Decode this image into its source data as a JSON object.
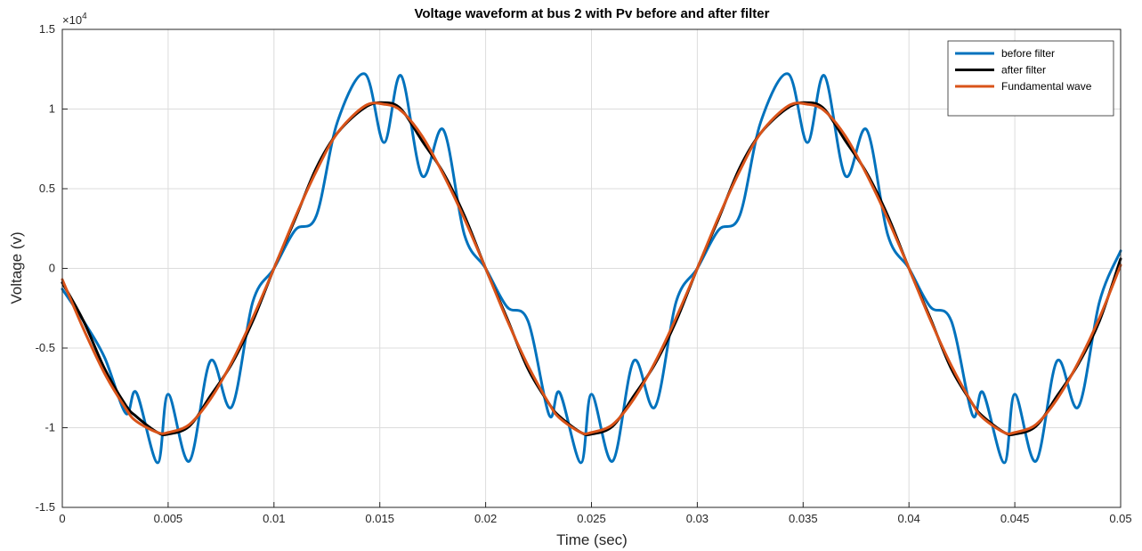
{
  "chart_data": {
    "type": "line",
    "title": "Voltage waveform at bus 2 with Pv before and after filter",
    "xlabel": "Time (sec)",
    "ylabel": "Voltage (v)",
    "y_exponent_label": "×10",
    "y_exponent_power": "4",
    "xlim": [
      0,
      0.05
    ],
    "ylim": [
      -15000,
      15000
    ],
    "x_ticks": [
      "0",
      "0.005",
      "0.01",
      "0.015",
      "0.02",
      "0.025",
      "0.03",
      "0.035",
      "0.04",
      "0.045",
      "0.05"
    ],
    "y_ticks": [
      "-1.5",
      "-1",
      "-0.5",
      "0",
      "0.5",
      "1",
      "1.5"
    ],
    "grid": true,
    "legend_position": "top-right",
    "x": [
      0,
      0.001,
      0.002,
      0.003,
      0.0035,
      0.0045,
      0.005,
      0.006,
      0.007,
      0.008,
      0.009,
      0.01,
      0.011,
      0.012,
      0.013,
      0.0143,
      0.0152,
      0.016,
      0.017,
      0.018,
      0.019,
      0.02,
      0.021,
      0.022,
      0.023,
      0.0235,
      0.0245,
      0.025,
      0.026,
      0.027,
      0.028,
      0.029,
      0.03,
      0.031,
      0.032,
      0.033,
      0.0343,
      0.0352,
      0.036,
      0.037,
      0.038,
      0.039,
      0.04,
      0.041,
      0.042,
      0.043,
      0.0435,
      0.0445,
      0.045,
      0.046,
      0.047,
      0.048,
      0.049,
      0.05
    ],
    "series": [
      {
        "name": "before filter",
        "color": "#0072BD",
        "values": [
          -1300,
          -3300,
          -5600,
          -9100,
          -7800,
          -12200,
          -7900,
          -12100,
          -5800,
          -8700,
          -2100,
          0,
          2400,
          3300,
          9200,
          12200,
          7900,
          12100,
          5800,
          8700,
          2100,
          0,
          -2400,
          -3300,
          -9200,
          -7800,
          -12200,
          -7900,
          -12100,
          -5800,
          -8700,
          -2100,
          0,
          2400,
          3300,
          9200,
          12200,
          7900,
          12100,
          5800,
          8700,
          2100,
          0,
          -2400,
          -3300,
          -9200,
          -7800,
          -12200,
          -7900,
          -12100,
          -5800,
          -8700,
          -2100,
          1100
        ]
      },
      {
        "name": "after filter",
        "color": "#000000",
        "values": [
          -900,
          -3300,
          -6300,
          -8600,
          -9300,
          -10300,
          -10400,
          -9900,
          -8000,
          -6000,
          -3300,
          0,
          3100,
          6300,
          8500,
          10100,
          10400,
          10000,
          8000,
          6000,
          3300,
          0,
          -3100,
          -6300,
          -8500,
          -9300,
          -10300,
          -10400,
          -9900,
          -8000,
          -6000,
          -3300,
          0,
          3100,
          6300,
          8500,
          10100,
          10400,
          10000,
          8000,
          6000,
          3300,
          0,
          -3100,
          -6300,
          -8500,
          -9300,
          -10300,
          -10400,
          -9900,
          -8000,
          -6000,
          -3300,
          600
        ]
      },
      {
        "name": "Fundamental wave",
        "color": "#D95319",
        "values": [
          -700,
          -3800,
          -6600,
          -8800,
          -9600,
          -10300,
          -10300,
          -9800,
          -8200,
          -5900,
          -3100,
          0,
          3200,
          6100,
          8500,
          10200,
          10300,
          9900,
          8300,
          5900,
          3100,
          0,
          -3200,
          -6100,
          -8500,
          -9400,
          -10300,
          -10300,
          -9800,
          -8200,
          -5900,
          -3100,
          0,
          3200,
          6100,
          8500,
          10200,
          10300,
          9900,
          8300,
          5900,
          3100,
          0,
          -3200,
          -6100,
          -8500,
          -9400,
          -10300,
          -10300,
          -9800,
          -8200,
          -5900,
          -3100,
          200
        ]
      }
    ]
  }
}
